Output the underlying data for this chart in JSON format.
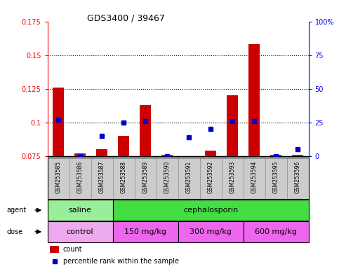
{
  "title": "GDS3400 / 39467",
  "samples": [
    "GSM253585",
    "GSM253586",
    "GSM253587",
    "GSM253588",
    "GSM253589",
    "GSM253590",
    "GSM253591",
    "GSM253592",
    "GSM253593",
    "GSM253594",
    "GSM253595",
    "GSM253596"
  ],
  "count_values": [
    0.126,
    0.077,
    0.08,
    0.09,
    0.113,
    0.076,
    0.074,
    0.079,
    0.12,
    0.158,
    0.076,
    0.076
  ],
  "percentile_values": [
    27,
    0,
    15,
    25,
    26,
    0,
    14,
    20,
    26,
    26,
    0,
    5
  ],
  "ylim_left": [
    0.075,
    0.175
  ],
  "ylim_right": [
    0,
    100
  ],
  "ytick_labels_left": [
    "0.075",
    "0.1",
    "0.125",
    "0.15",
    "0.175"
  ],
  "ytick_vals_left": [
    0.075,
    0.1,
    0.125,
    0.15,
    0.175
  ],
  "ytick_labels_right": [
    "0",
    "25",
    "50",
    "75",
    "100%"
  ],
  "ytick_vals_right": [
    0,
    25,
    50,
    75,
    100
  ],
  "bar_color": "#cc0000",
  "dot_color": "#0000cc",
  "bar_bottom": 0.075,
  "agent_groups": [
    {
      "label": "saline",
      "start": 0,
      "end": 3,
      "color": "#99ee99"
    },
    {
      "label": "cephalosporin",
      "start": 3,
      "end": 12,
      "color": "#44dd44"
    }
  ],
  "dose_groups": [
    {
      "label": "control",
      "start": 0,
      "end": 3,
      "color": "#eeaaee"
    },
    {
      "label": "150 mg/kg",
      "start": 3,
      "end": 6,
      "color": "#ee66ee"
    },
    {
      "label": "300 mg/kg",
      "start": 6,
      "end": 9,
      "color": "#ee66ee"
    },
    {
      "label": "600 mg/kg",
      "start": 9,
      "end": 12,
      "color": "#ee66ee"
    }
  ],
  "bg_color": "#ffffff",
  "sample_bg_color": "#cccccc",
  "grid_dotted_vals": [
    0.1,
    0.125,
    0.15
  ]
}
